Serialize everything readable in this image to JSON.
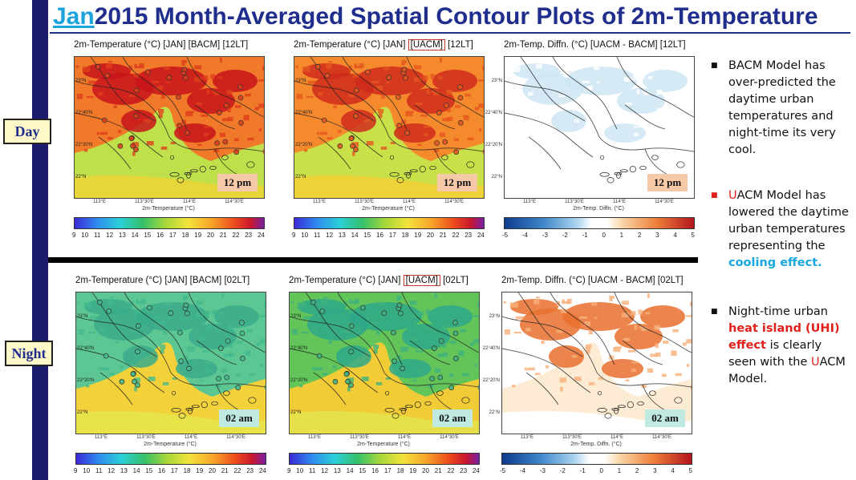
{
  "title": {
    "prefix": "Jan",
    "rest": "2015 Month-Averaged Spatial Contour Plots of 2m-Temperature"
  },
  "row_labels": {
    "day": "Day",
    "night": "Night"
  },
  "panels": {
    "day_bacm": {
      "title_pre": "2m-Temperature (°C)  [JAN]  [BACM]  [12LT]",
      "time": "12 pm",
      "axis": "2m-Temperature (°C)"
    },
    "day_uacm": {
      "title_pre": "2m-Temperature (°C)  [JAN] ",
      "title_box": "[UACM]",
      "title_post": " [12LT]",
      "time": "12 pm",
      "axis": "2m-Temperature (°C)"
    },
    "day_diff": {
      "title_pre": "2m-Temp. Diffn. (°C)  [UACM - BACM]  [12LT]",
      "time": "12 pm",
      "axis": "2m-Temp. Diffn. (°C)"
    },
    "night_bacm": {
      "title_pre": "2m-Temperature (°C)  [JAN]  [BACM]  [02LT]",
      "time": "02 am",
      "axis": "2m-Temperature (°C)"
    },
    "night_uacm": {
      "title_pre": "2m-Temperature (°C)  [JAN] ",
      "title_box": "[UACM]",
      "title_post": " [02LT]",
      "time": "02 am",
      "axis": "2m-Temperature (°C)"
    },
    "night_diff": {
      "title_pre": "2m-Temp. Diffn. (°C)  [UACM - BACM]  [02LT]",
      "time": "02 am",
      "axis": "2m-Temp. Diffn. (°C)"
    }
  },
  "lat_ticks": [
    "23°N",
    "22°40'N",
    "22°20'N",
    "22°N"
  ],
  "lon_ticks": [
    "113°E",
    "113°30'E",
    "114°E",
    "114°30'E"
  ],
  "temp_ticks": [
    "9",
    "10",
    "11",
    "12",
    "13",
    "14",
    "15",
    "16",
    "17",
    "18",
    "19",
    "20",
    "21",
    "22",
    "23",
    "24"
  ],
  "diff_ticks": [
    "-5",
    "-4",
    "-3",
    "-2",
    "-1",
    "0",
    "1",
    "2",
    "3",
    "4",
    "5"
  ],
  "colors": {
    "title_blue": "#1f2d8c",
    "jan_cyan": "#1aa3dc",
    "day_time_bg": "#f6c9a8",
    "night_time_bg": "#bfe9e1",
    "label_bg": "#fff9c9",
    "accent_red": "#e0201a",
    "accent_cyan": "#19a7e0"
  },
  "bullets": {
    "b1": "BACM Model has over-predicted the daytime urban temperatures and night-time its very cool.",
    "b2_u": "U",
    "b2_rest": "ACM Model has lowered the daytime urban temperatures representing the",
    "b2_hl": "cooling effect.",
    "b3_pre": "Night-time urban",
    "b3_hl": "heat island (UHI) effect",
    "b3_mid": "is clearly seen with the",
    "b3_u": "U",
    "b3_end": "ACM Model."
  }
}
